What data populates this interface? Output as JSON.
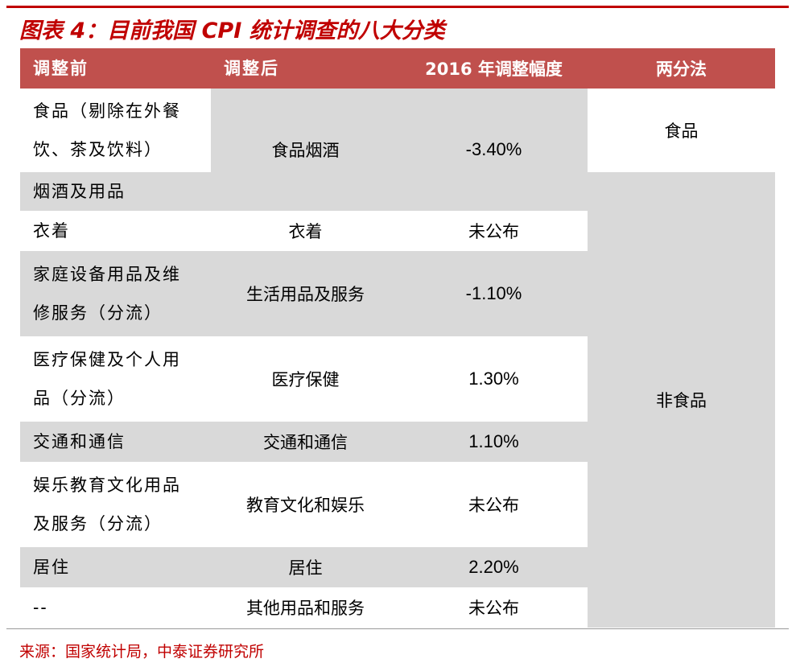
{
  "title": "图表 4：目前我国 CPI 统计调查的八大分类",
  "table": {
    "header": [
      "调整前",
      "调整后",
      "2016 年调整幅度",
      "两分法"
    ],
    "rows": [
      [
        "食品（剔除在外餐饮、茶及饮料）",
        "食品烟酒",
        "-3.40%",
        "食品"
      ],
      [
        "烟酒及用品"
      ],
      [
        "衣着",
        "衣着",
        "未公布",
        "非食品"
      ],
      [
        "家庭设备用品及维修服务（分流）",
        "生活用品及服务",
        "-1.10%"
      ],
      [
        "医疗保健及个人用品（分流）",
        "医疗保健",
        "1.30%"
      ],
      [
        "交通和通信",
        "交通和通信",
        "1.10%"
      ],
      [
        "娱乐教育文化用品及服务（分流）",
        "教育文化和娱乐",
        "未公布"
      ],
      [
        "居住",
        "居住",
        "2.20%"
      ],
      [
        "--",
        "其他用品和服务",
        "未公布"
      ]
    ]
  },
  "source": "来源：国家统计局，中泰证券研究所"
}
